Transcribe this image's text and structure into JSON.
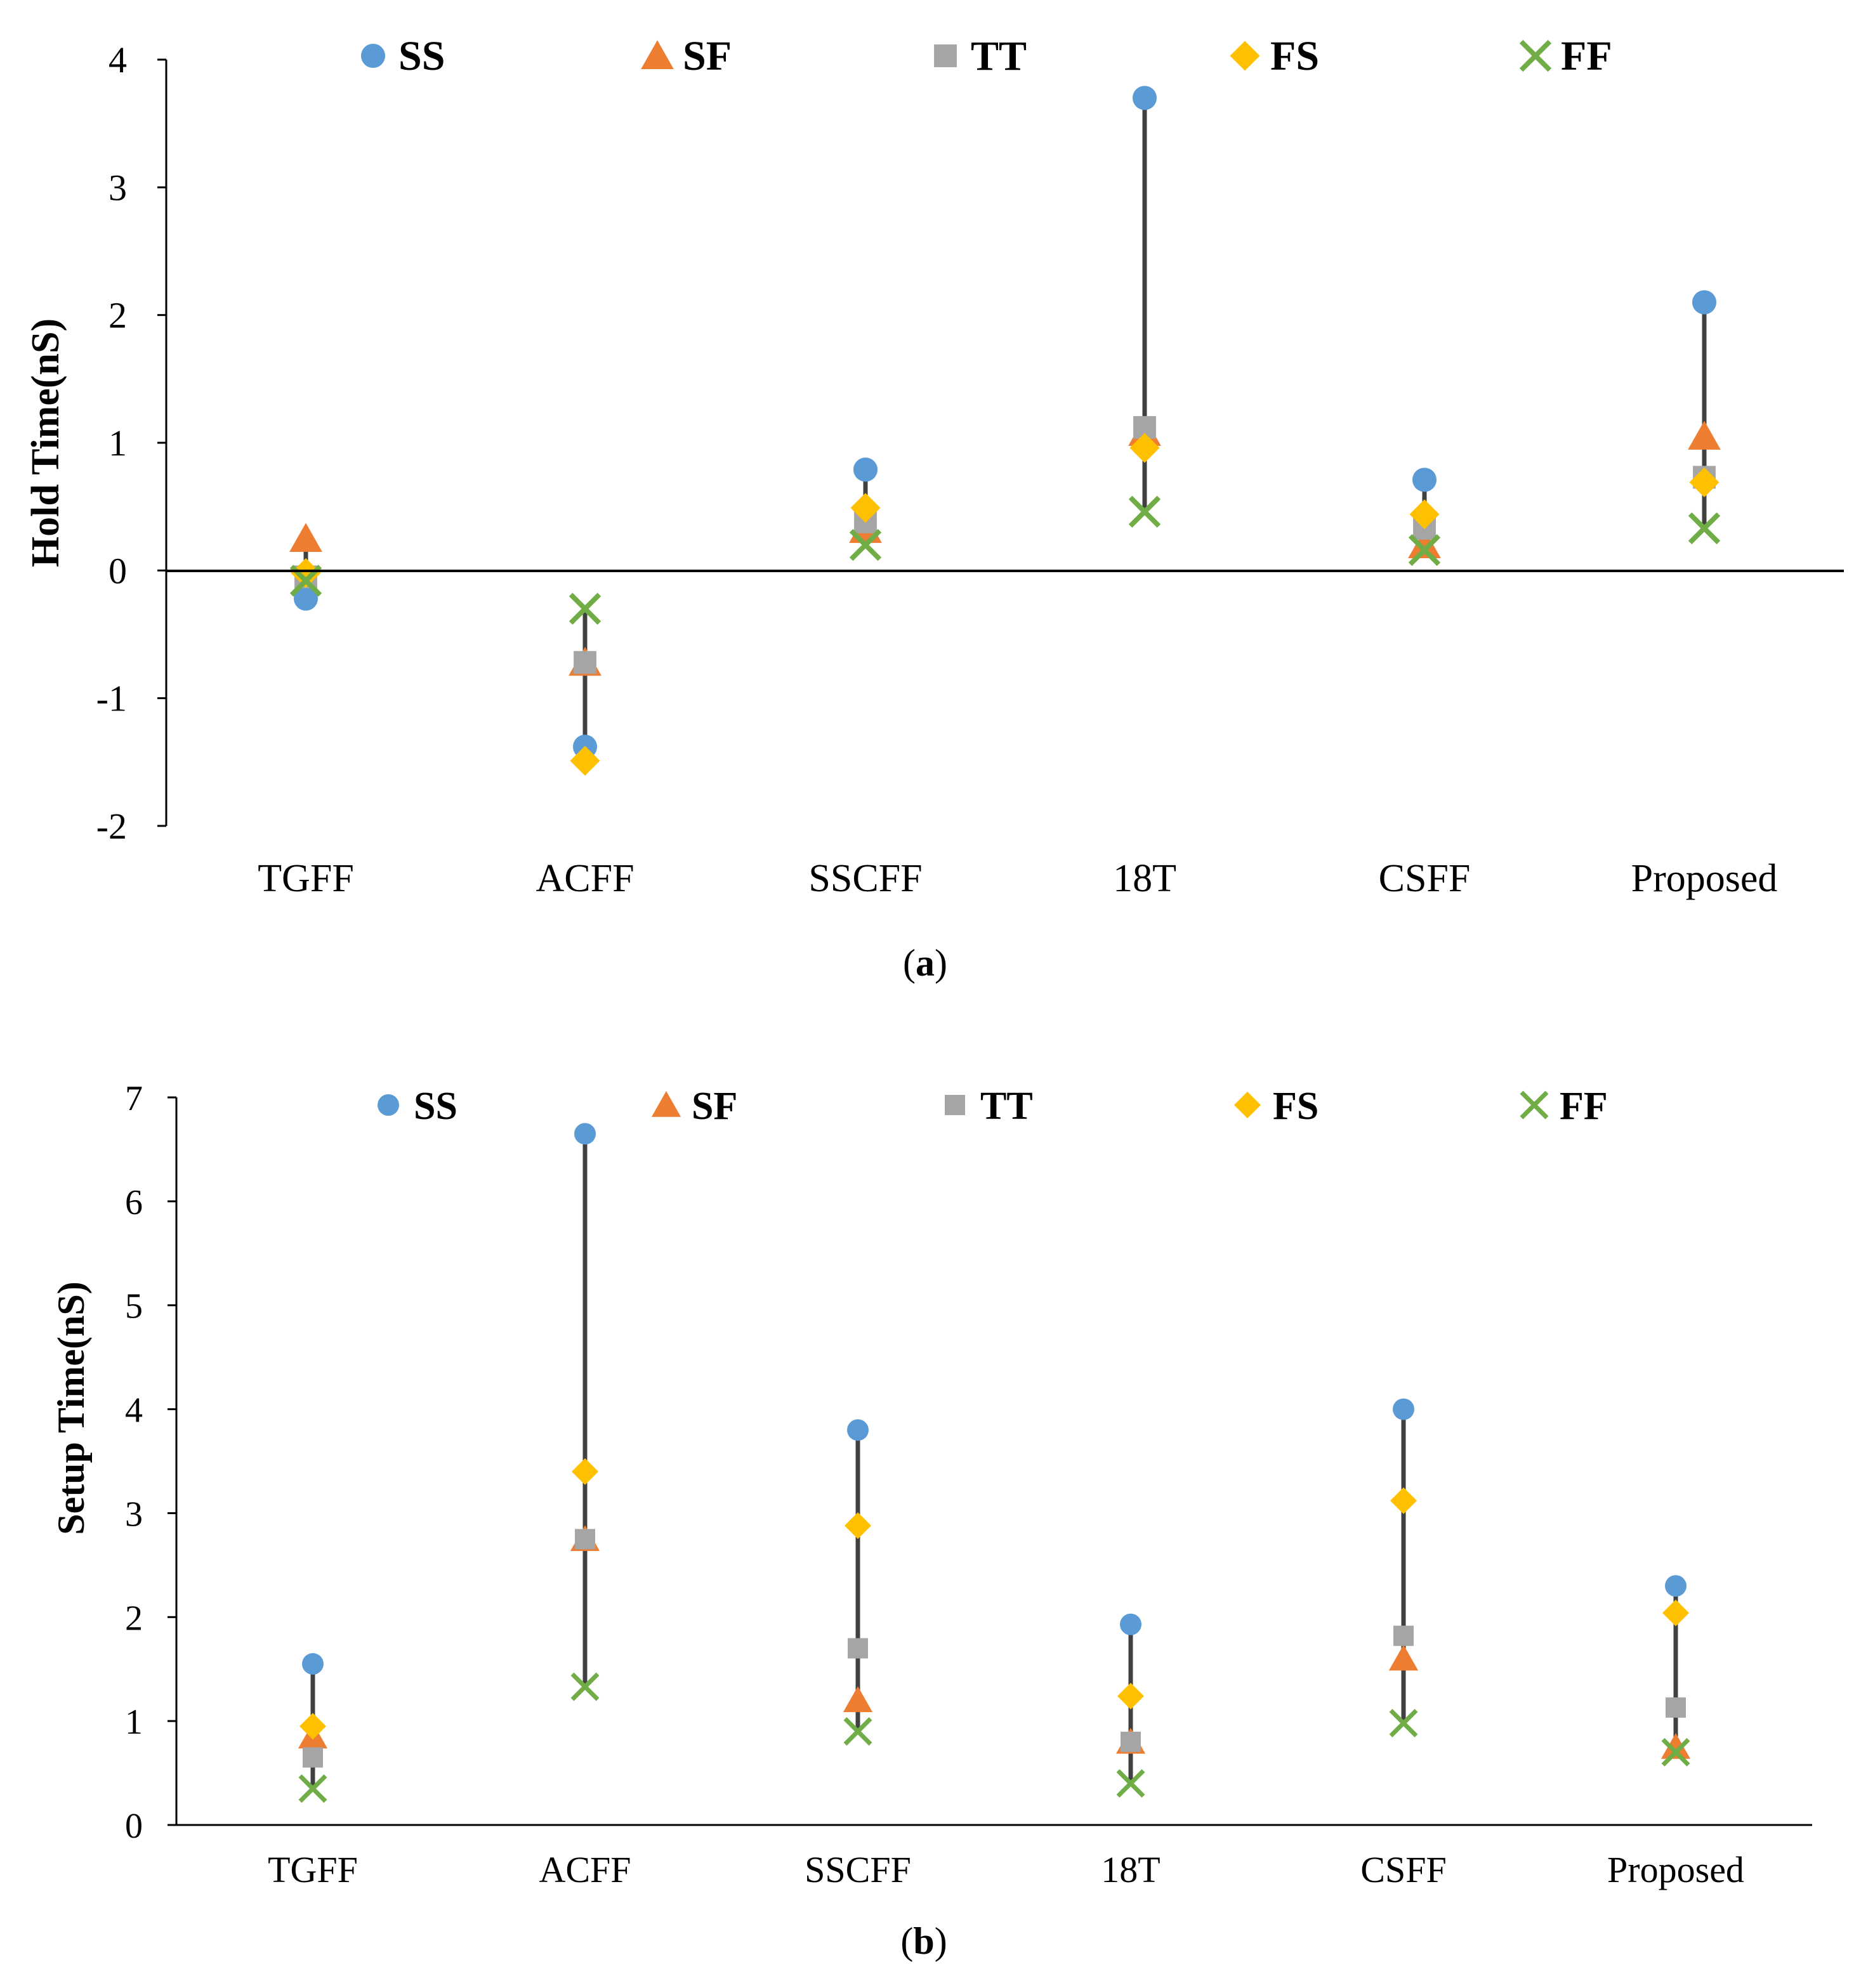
{
  "colors": {
    "SS": "#5B9BD5",
    "SF": "#ED7D31",
    "TT": "#A5A5A5",
    "FS": "#FFC000",
    "FF": "#70AD47",
    "range_line": "#404040",
    "axis": "#000000",
    "background": "#ffffff"
  },
  "legend": [
    {
      "key": "SS",
      "label": "SS",
      "marker": "circle-icon"
    },
    {
      "key": "SF",
      "label": "SF",
      "marker": "triangle-icon"
    },
    {
      "key": "TT",
      "label": "TT",
      "marker": "square-icon"
    },
    {
      "key": "FS",
      "label": "FS",
      "marker": "diamond-icon"
    },
    {
      "key": "FF",
      "label": "FF",
      "marker": "x-icon"
    }
  ],
  "chart_data": [
    {
      "type": "scatter",
      "panel_label": "(a)",
      "panel_letter": "a",
      "title": "",
      "xlabel": "",
      "ylabel": "Hold Time(nS)",
      "ylim": [
        -2,
        4
      ],
      "yticks": [
        -2,
        -1,
        0,
        1,
        2,
        3,
        4
      ],
      "grid": false,
      "legend_position": "top",
      "categories": [
        "TGFF",
        "ACFF",
        "SSCFF",
        "18T",
        "CSFF",
        "Proposed"
      ],
      "series": [
        {
          "name": "SS",
          "values": [
            -0.22,
            -1.38,
            0.79,
            3.7,
            0.71,
            2.1
          ]
        },
        {
          "name": "SF",
          "values": [
            0.25,
            -0.72,
            0.32,
            1.08,
            0.2,
            1.05
          ]
        },
        {
          "name": "TT",
          "values": [
            -0.05,
            -0.72,
            0.38,
            1.12,
            0.33,
            0.73
          ]
        },
        {
          "name": "FS",
          "values": [
            -0.02,
            -1.49,
            0.49,
            0.96,
            0.44,
            0.69
          ]
        },
        {
          "name": "FF",
          "values": [
            -0.08,
            -0.3,
            0.2,
            0.46,
            0.16,
            0.33
          ]
        }
      ]
    },
    {
      "type": "scatter",
      "panel_label": "(b)",
      "panel_letter": "b",
      "title": "",
      "xlabel": "",
      "ylabel": "Setup Time(nS)",
      "ylim": [
        0,
        7
      ],
      "yticks": [
        0,
        1,
        2,
        3,
        4,
        5,
        6,
        7
      ],
      "grid": false,
      "legend_position": "top",
      "categories": [
        "TGFF",
        "ACFF",
        "SSCFF",
        "18T",
        "CSFF",
        "Proposed"
      ],
      "series": [
        {
          "name": "SS",
          "values": [
            1.55,
            6.65,
            3.8,
            1.93,
            4.0,
            2.3
          ]
        },
        {
          "name": "SF",
          "values": [
            0.85,
            2.75,
            1.2,
            0.8,
            1.6,
            0.75
          ]
        },
        {
          "name": "TT",
          "values": [
            0.65,
            2.75,
            1.7,
            0.8,
            1.82,
            1.13
          ]
        },
        {
          "name": "FS",
          "values": [
            0.95,
            3.4,
            2.88,
            1.24,
            3.12,
            2.04
          ]
        },
        {
          "name": "FF",
          "values": [
            0.35,
            1.33,
            0.9,
            0.4,
            0.98,
            0.7
          ]
        }
      ]
    }
  ]
}
